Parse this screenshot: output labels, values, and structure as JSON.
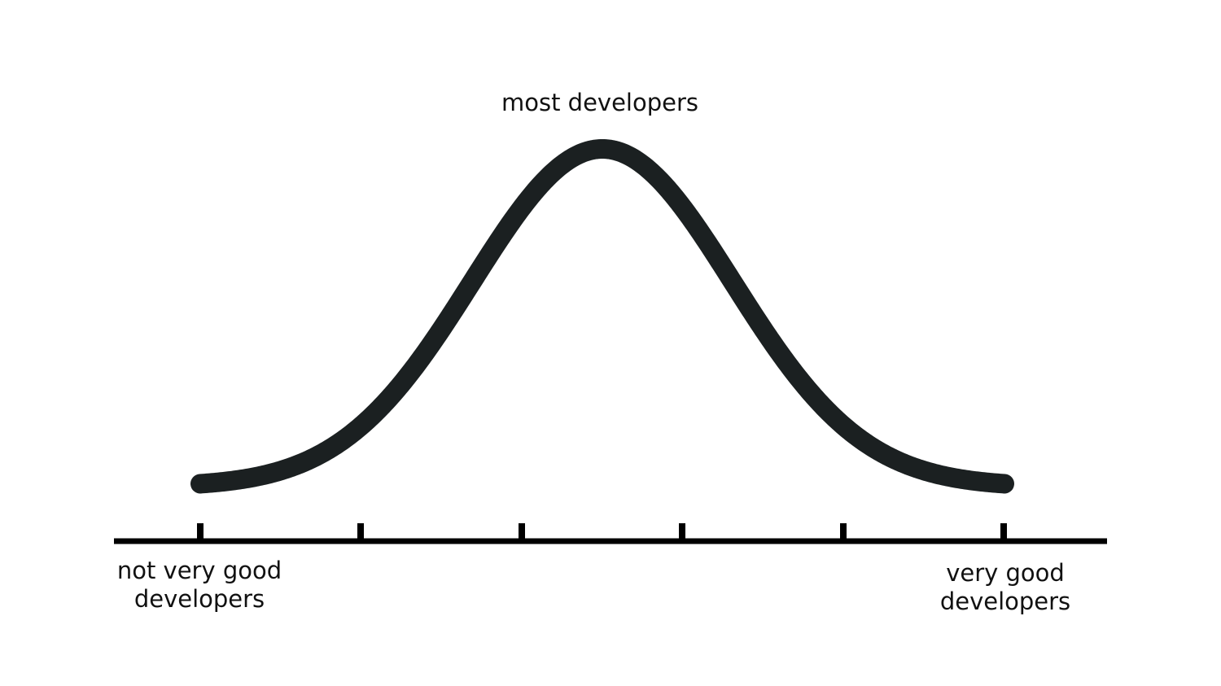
{
  "labels": {
    "peak": "most developers",
    "left": [
      "not very good",
      "developers"
    ],
    "right": [
      "very good",
      "developers"
    ]
  }
}
